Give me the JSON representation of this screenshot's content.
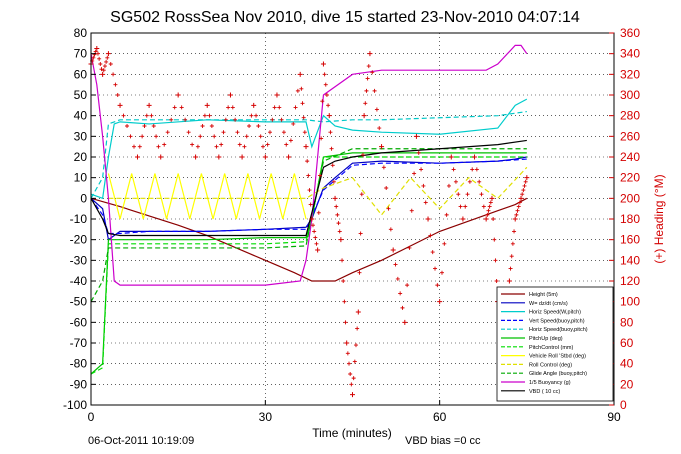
{
  "chart_data": {
    "type": "line",
    "title": "SG502 RossSea Nov 2010, dive 15 started 23-Nov-2010 04:07:14",
    "xlabel": "Time (minutes)",
    "ylabel_right": "(+) Heading (°M)",
    "footer_left": "06-Oct-2011 10:19:09",
    "footer_right": "VBD bias =0 cc",
    "xlim": [
      0,
      90
    ],
    "ylim": [
      -100,
      80
    ],
    "ylim_right": [
      0,
      360
    ],
    "x_ticks": [
      0,
      30,
      60,
      90
    ],
    "y_ticks": [
      -100,
      -90,
      -80,
      -70,
      -60,
      -50,
      -40,
      -30,
      -20,
      -10,
      0,
      10,
      20,
      30,
      40,
      50,
      60,
      70,
      80
    ],
    "y_ticks_right": [
      0,
      20,
      40,
      60,
      80,
      100,
      120,
      140,
      160,
      180,
      200,
      220,
      240,
      260,
      280,
      300,
      320,
      340,
      360
    ],
    "grid": true,
    "legend_position": "bottom-right",
    "series": [
      {
        "name": "Height (5m)",
        "color": "#8b0000",
        "style": "solid",
        "x": [
          0,
          5,
          10,
          15,
          20,
          25,
          30,
          35,
          38,
          42,
          45,
          50,
          55,
          60,
          65,
          70,
          73,
          75
        ],
        "y": [
          0,
          -4,
          -8.5,
          -13,
          -18,
          -24,
          -30,
          -36,
          -40,
          -40,
          -36,
          -30,
          -23,
          -16,
          -11,
          -6,
          -3,
          0
        ]
      },
      {
        "name": "W= dz/dt (cm/s)",
        "color": "#0000c0",
        "style": "solid",
        "x": [
          0,
          2,
          3,
          4,
          5,
          10,
          20,
          30,
          37,
          38,
          40,
          42,
          45,
          50,
          60,
          70,
          73,
          75
        ],
        "y": [
          0,
          -5,
          -20,
          -18,
          -16,
          -16,
          -16,
          -15,
          -14,
          -10,
          5,
          10,
          17,
          18,
          17,
          18,
          19,
          20
        ]
      },
      {
        "name": "Horiz Speed(W,pitch)",
        "color": "#00cccc",
        "style": "solid",
        "x": [
          0,
          2,
          3,
          4,
          5,
          10,
          20,
          30,
          37,
          38,
          40,
          42,
          45,
          50,
          60,
          70,
          73,
          75
        ],
        "y": [
          2,
          0,
          20,
          36,
          37,
          36,
          38,
          37,
          37,
          25,
          40,
          35,
          33,
          32,
          31,
          34,
          45,
          48
        ]
      },
      {
        "name": "Vert Speed(buoy,pitch)",
        "color": "#0000ff",
        "style": "dashed",
        "x": [
          0,
          2,
          3,
          5,
          10,
          20,
          30,
          37,
          40,
          45,
          50,
          60,
          70,
          75
        ],
        "y": [
          0,
          -8,
          -17,
          -17,
          -16,
          -16,
          -15,
          -15,
          4,
          16,
          17,
          17,
          18,
          19
        ]
      },
      {
        "name": "Horiz Speed(buoy,pitch)",
        "color": "#00c8c8",
        "style": "dashed",
        "x": [
          0,
          2,
          3,
          5,
          10,
          20,
          30,
          37,
          40,
          45,
          50,
          60,
          70,
          75
        ],
        "y": [
          0,
          10,
          36,
          38,
          38,
          38,
          38,
          38,
          37,
          38,
          38,
          39,
          40,
          42
        ]
      },
      {
        "name": "PitchUp (deg)",
        "color": "#00c000",
        "style": "solid",
        "x": [
          0,
          2,
          3,
          5,
          10,
          20,
          30,
          37,
          38,
          40,
          45,
          50,
          60,
          70,
          75
        ],
        "y": [
          -85,
          -80,
          -20,
          -20,
          -20,
          -20,
          -19,
          -19,
          -10,
          20,
          22,
          22,
          22,
          22,
          22
        ]
      },
      {
        "name": "PitchControl (mm)",
        "color": "#00dd00",
        "style": "dashed",
        "x": [
          0,
          2,
          3,
          5,
          10,
          20,
          30,
          37,
          38,
          40,
          45,
          50,
          60,
          70,
          75
        ],
        "y": [
          -85,
          -82,
          -22,
          -22,
          -22,
          -22,
          -22,
          -21,
          -10,
          20,
          20,
          20,
          20,
          20,
          20
        ]
      },
      {
        "name": "Vehicle Roll 'Stbd (deg)",
        "color": "#ffff00",
        "style": "solid",
        "x": [
          3,
          5,
          7,
          9,
          11,
          13,
          15,
          17,
          19,
          21,
          23,
          25,
          27,
          29,
          31,
          33,
          35,
          37
        ],
        "y": [
          12,
          -10,
          12,
          -10,
          12,
          -10,
          12,
          -10,
          12,
          -10,
          12,
          -10,
          12,
          -10,
          12,
          -10,
          12,
          -10
        ]
      },
      {
        "name": "Roll Control (deg)",
        "color": "#e0e000",
        "style": "dashed",
        "x": [
          3,
          10,
          20,
          30,
          37,
          40,
          45,
          50,
          55,
          60,
          65,
          70,
          75
        ],
        "y": [
          0,
          0,
          0,
          0,
          0,
          5,
          10,
          -8,
          10,
          -5,
          10,
          0,
          15
        ]
      },
      {
        "name": "Glide Angle (buoy,pitch)",
        "color": "#00aa00",
        "style": "dashed",
        "x": [
          0,
          2,
          3,
          5,
          10,
          20,
          30,
          37,
          40,
          45,
          50,
          60,
          70,
          75
        ],
        "y": [
          -50,
          -40,
          -24,
          -24,
          -24,
          -24,
          -24,
          -23,
          18,
          24,
          24,
          24,
          24,
          24
        ]
      },
      {
        "name": "1/5 Buoyancy (g)",
        "color": "#cc00cc",
        "style": "solid",
        "x": [
          0,
          1,
          2,
          3,
          4,
          5,
          10,
          20,
          30,
          36,
          37,
          38,
          39,
          40,
          45,
          50,
          60,
          68,
          70,
          73,
          74,
          75
        ],
        "y": [
          70,
          55,
          30,
          0,
          -40,
          -42,
          -42,
          -42,
          -42,
          -40,
          -30,
          -10,
          20,
          50,
          60,
          62,
          62,
          62,
          65,
          74,
          74,
          70
        ]
      },
      {
        "name": "VBD ( 10 cc)",
        "color": "#000000",
        "style": "solid",
        "x": [
          0,
          2,
          3,
          5,
          10,
          20,
          30,
          37,
          40,
          42,
          45,
          50,
          60,
          70,
          75
        ],
        "y": [
          0,
          -10,
          -17,
          -18,
          -18,
          -18,
          -18,
          -18,
          15,
          18,
          20,
          22,
          24,
          26,
          28
        ]
      },
      {
        "name": "(+) Heading (°M)",
        "color": "#d40000",
        "style": "markers",
        "axis": "right",
        "x": [
          0,
          1,
          2,
          3,
          5,
          8,
          10,
          12,
          15,
          18,
          20,
          22,
          24,
          26,
          28,
          30,
          32,
          34,
          36,
          37,
          38,
          39,
          40,
          41,
          42,
          43,
          44,
          45,
          46,
          47,
          48,
          50,
          52,
          54,
          56,
          58,
          60,
          62,
          64,
          66,
          68,
          69,
          70,
          71,
          72,
          73,
          74,
          75
        ],
        "y": [
          330,
          345,
          320,
          340,
          290,
          240,
          290,
          240,
          300,
          240,
          290,
          240,
          300,
          240,
          290,
          240,
          300,
          240,
          320,
          250,
          180,
          150,
          330,
          280,
          200,
          160,
          60,
          10,
          90,
          280,
          340,
          250,
          150,
          80,
          260,
          180,
          100,
          240,
          180,
          240,
          180,
          200,
          100,
          60,
          120,
          180,
          200,
          220
        ]
      }
    ]
  }
}
